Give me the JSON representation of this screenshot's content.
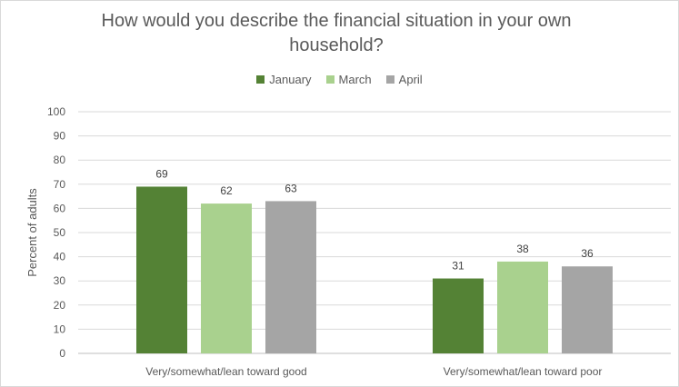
{
  "chart_data": {
    "type": "bar",
    "title": "How would you describe the financial situation in your own household?",
    "ylabel": "Percent of adults",
    "xlabel": "",
    "ylim": [
      0,
      100
    ],
    "yticks": [
      0,
      10,
      20,
      30,
      40,
      50,
      60,
      70,
      80,
      90,
      100
    ],
    "categories": [
      "Very/somewhat/lean toward good",
      "Very/somewhat/lean toward poor"
    ],
    "series": [
      {
        "name": "January",
        "color": "#548235",
        "values": [
          69,
          31
        ]
      },
      {
        "name": "March",
        "color": "#a9d18e",
        "values": [
          62,
          38
        ]
      },
      {
        "name": "April",
        "color": "#a5a5a5",
        "values": [
          63,
          36
        ]
      }
    ],
    "grid": true,
    "legend": "top-center",
    "data_labels": true
  }
}
